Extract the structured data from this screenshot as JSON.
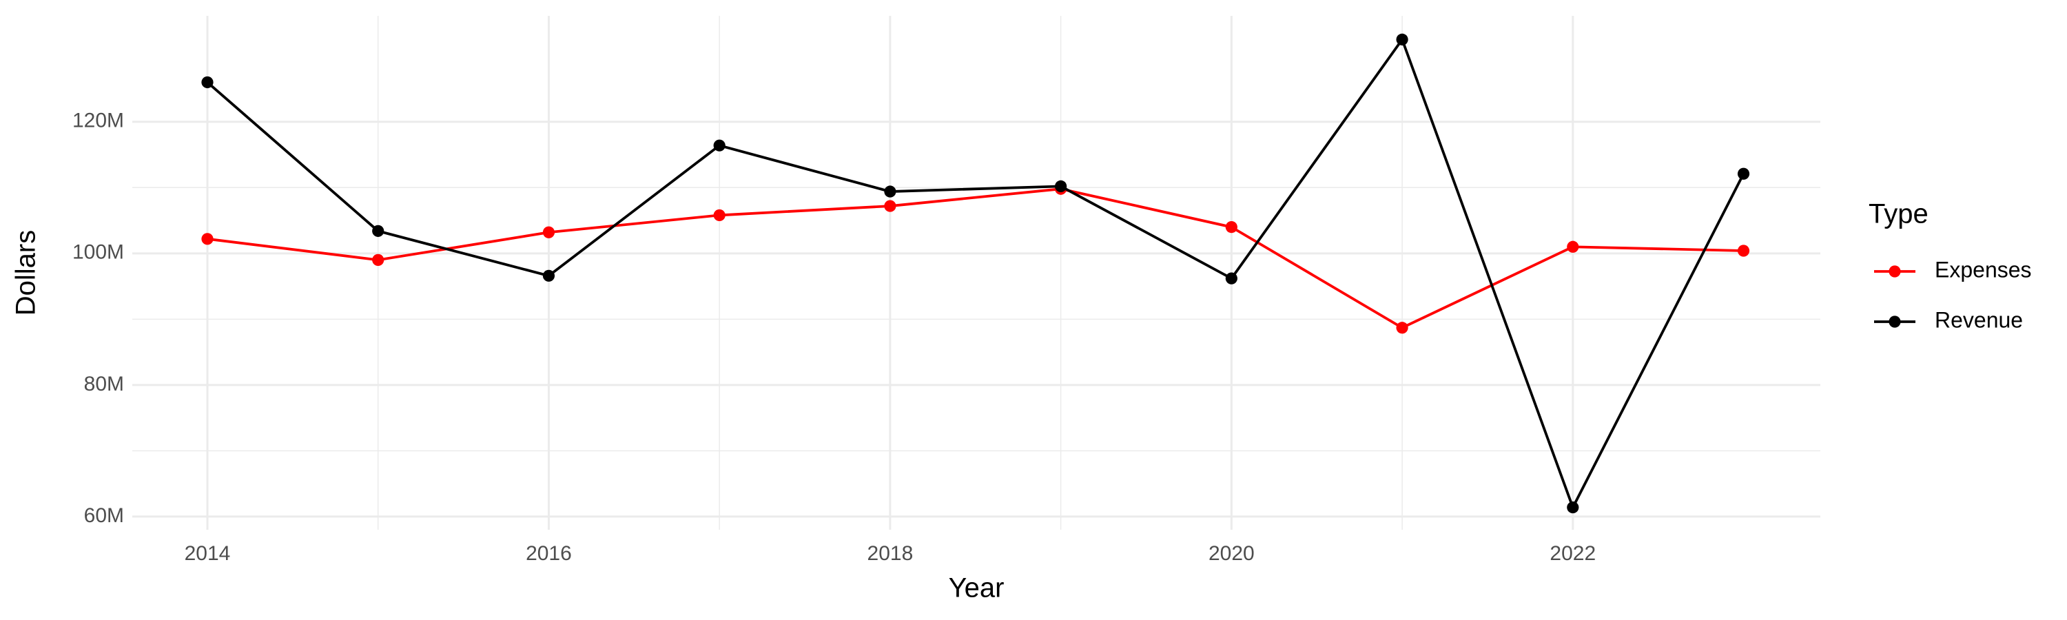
{
  "chart_data": {
    "type": "line",
    "x_label": "Year",
    "y_label": "Dollars",
    "legend_title": "Type",
    "x": [
      2014,
      2015,
      2016,
      2017,
      2018,
      2019,
      2020,
      2021,
      2022,
      2023
    ],
    "series": [
      {
        "name": "Expenses",
        "color": "red",
        "values": [
          102200000,
          99000000,
          103200000,
          105800000,
          107200000,
          109800000,
          104000000,
          88700000,
          101000000,
          100400000
        ]
      },
      {
        "name": "Revenue",
        "color": "black",
        "values": [
          126000000,
          103400000,
          96600000,
          116400000,
          109400000,
          110200000,
          96200000,
          132500000,
          61400000,
          112100000
        ]
      }
    ],
    "xlim": [
      2013.56,
      2023.45
    ],
    "ylim": [
      58000000,
      136100000
    ],
    "xticks": [
      2014,
      2016,
      2018,
      2020,
      2022
    ],
    "yticks": [
      {
        "value": 60000000,
        "label": "60M"
      },
      {
        "value": 80000000,
        "label": "80M"
      },
      {
        "value": 100000000,
        "label": "100M"
      },
      {
        "value": 120000000,
        "label": "120M"
      }
    ],
    "grid": true,
    "legend": "right"
  }
}
